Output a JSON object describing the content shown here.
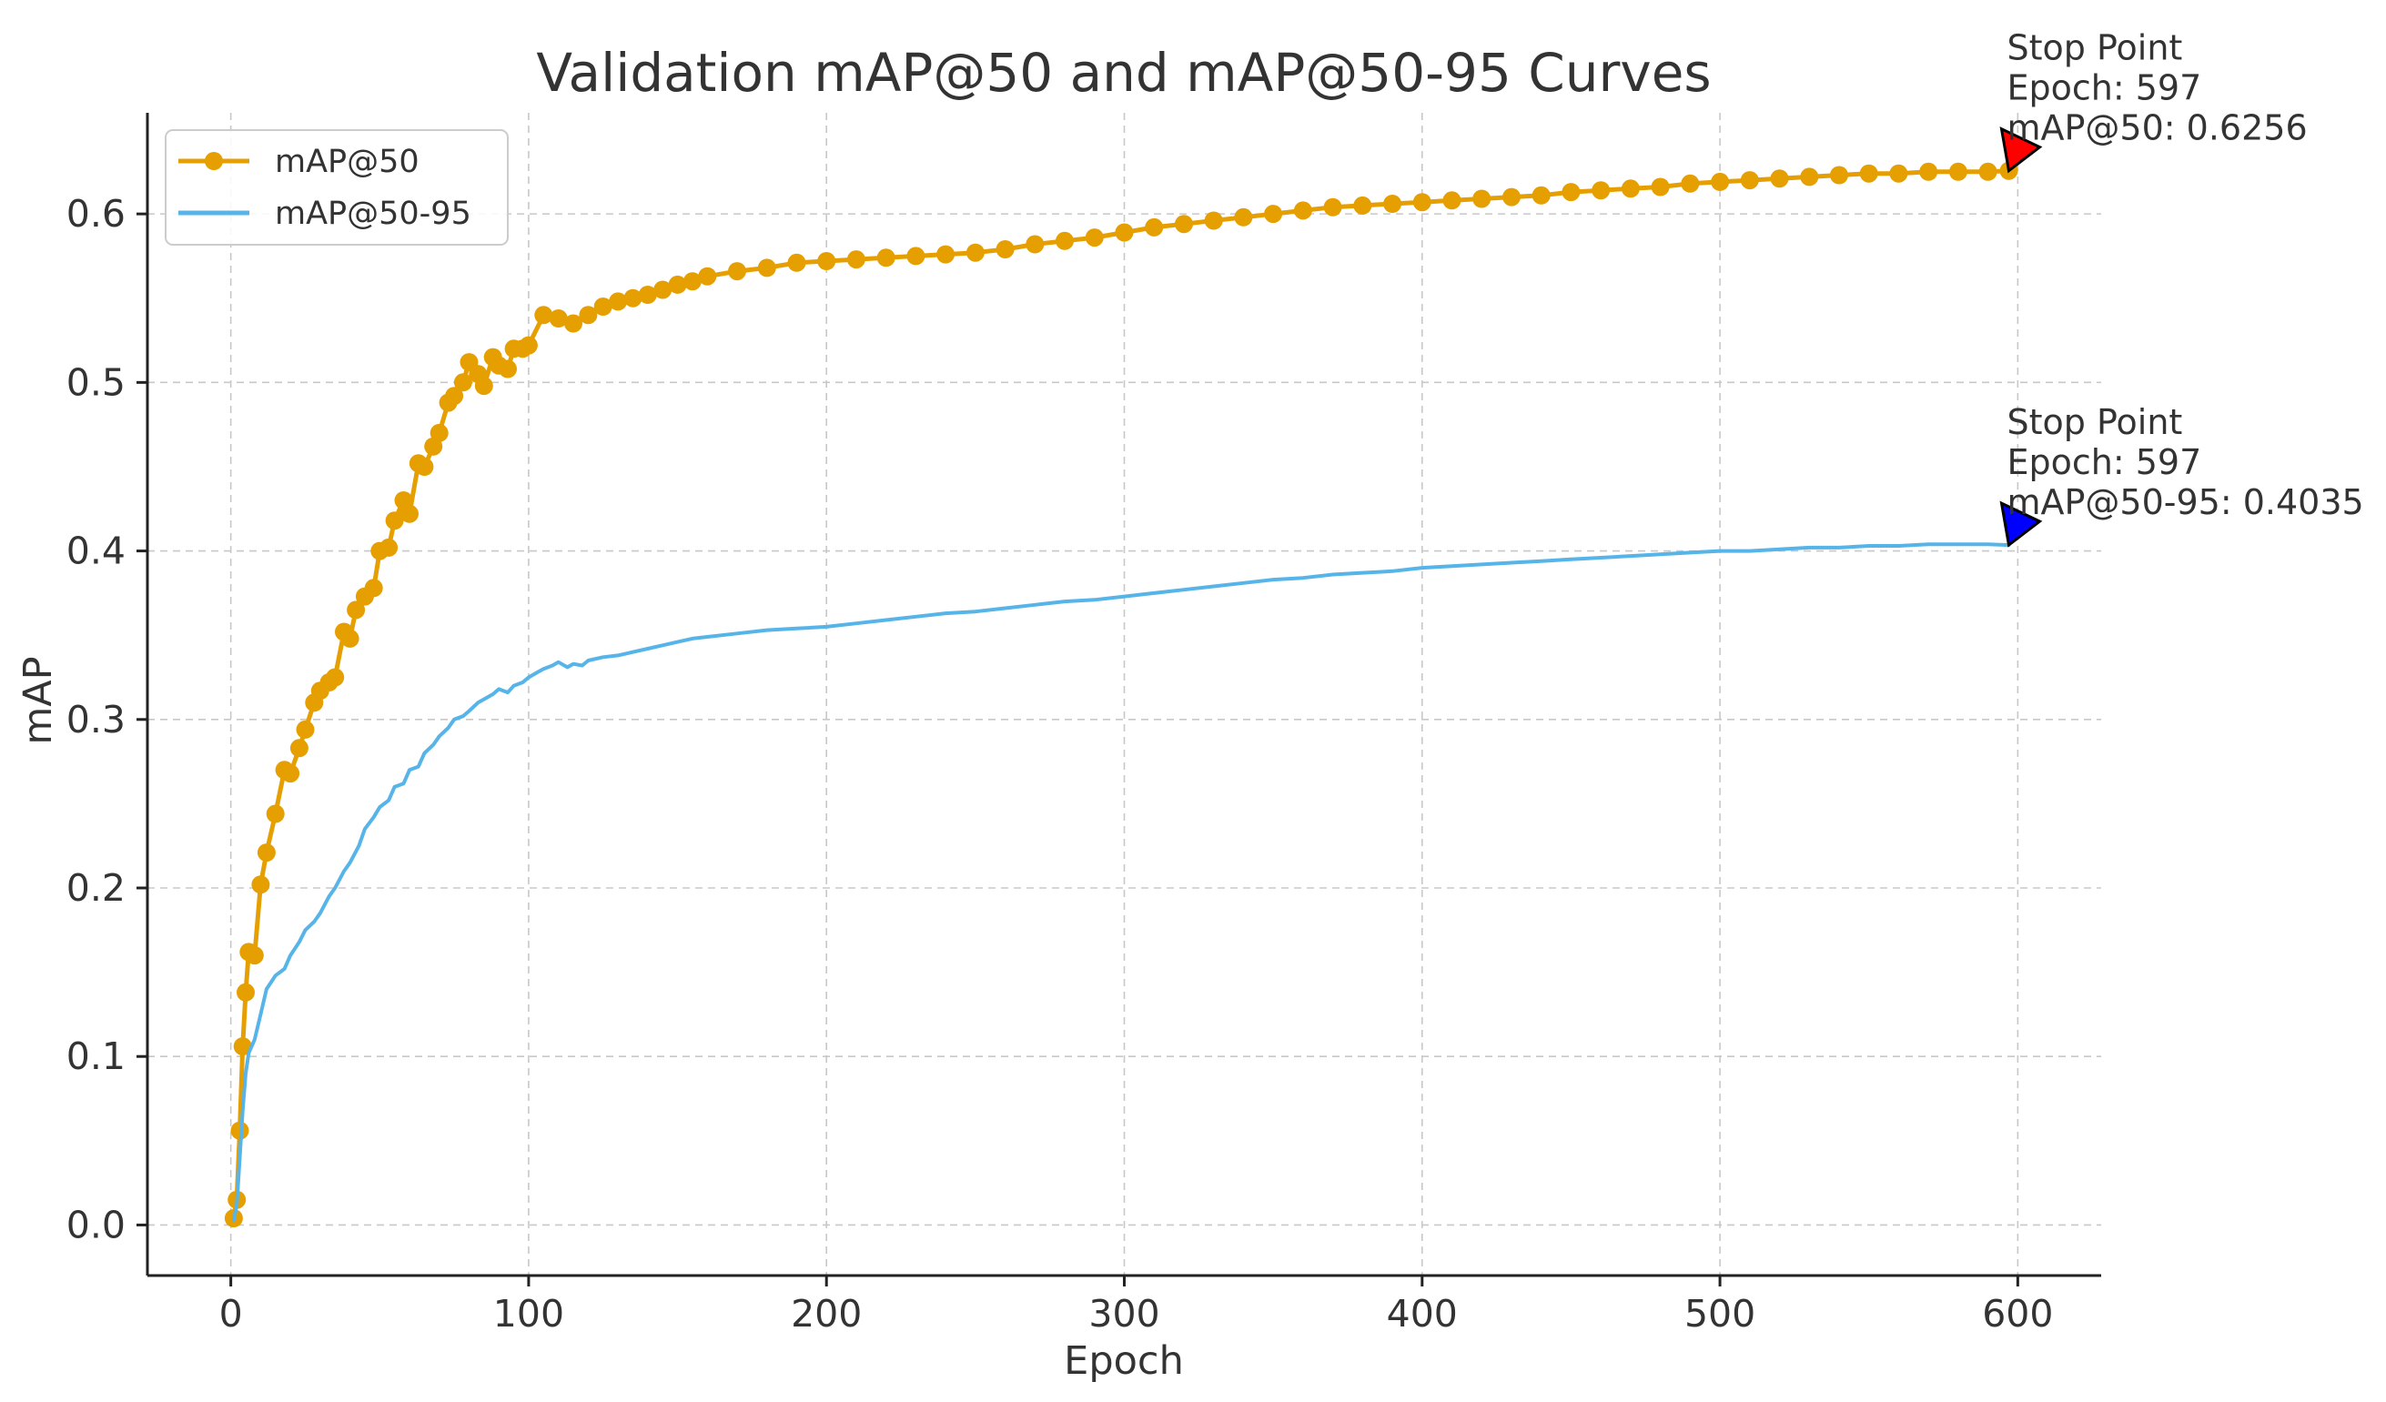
{
  "chart_data": {
    "type": "line",
    "title": "Validation mAP@50 and mAP@50-95 Curves",
    "xlabel": "Epoch",
    "ylabel": "mAP",
    "xlim": [
      -28,
      628
    ],
    "ylim": [
      -0.03,
      0.66
    ],
    "xticks": [
      0,
      100,
      200,
      300,
      400,
      500,
      600
    ],
    "xtick_labels": [
      "0",
      "100",
      "200",
      "300",
      "400",
      "500",
      "600"
    ],
    "yticks": [
      0.0,
      0.1,
      0.2,
      0.3,
      0.4,
      0.5,
      0.6
    ],
    "ytick_labels": [
      "0.0",
      "0.1",
      "0.2",
      "0.3",
      "0.4",
      "0.5",
      "0.6"
    ],
    "grid": true,
    "legend_position": "top-left",
    "series": [
      {
        "name": "mAP@50",
        "color": "#E69F00",
        "marker": "circle",
        "x": [
          1,
          2,
          3,
          4,
          5,
          6,
          8,
          10,
          12,
          15,
          18,
          20,
          23,
          25,
          28,
          30,
          33,
          35,
          38,
          40,
          42,
          45,
          48,
          50,
          53,
          55,
          58,
          60,
          63,
          65,
          68,
          70,
          73,
          75,
          78,
          80,
          83,
          85,
          88,
          90,
          93,
          95,
          98,
          100,
          105,
          110,
          115,
          120,
          125,
          130,
          135,
          140,
          145,
          150,
          155,
          160,
          170,
          180,
          190,
          200,
          210,
          220,
          230,
          240,
          250,
          260,
          270,
          280,
          290,
          300,
          310,
          320,
          330,
          340,
          350,
          360,
          370,
          380,
          390,
          400,
          410,
          420,
          430,
          440,
          450,
          460,
          470,
          480,
          490,
          500,
          510,
          520,
          530,
          540,
          550,
          560,
          570,
          580,
          590,
          597
        ],
        "values": [
          0.004,
          0.015,
          0.056,
          0.106,
          0.138,
          0.162,
          0.16,
          0.202,
          0.221,
          0.244,
          0.27,
          0.268,
          0.283,
          0.294,
          0.31,
          0.317,
          0.322,
          0.325,
          0.352,
          0.348,
          0.365,
          0.373,
          0.378,
          0.4,
          0.402,
          0.418,
          0.43,
          0.422,
          0.452,
          0.45,
          0.462,
          0.47,
          0.488,
          0.492,
          0.5,
          0.512,
          0.505,
          0.498,
          0.515,
          0.51,
          0.508,
          0.52,
          0.52,
          0.522,
          0.54,
          0.538,
          0.535,
          0.54,
          0.545,
          0.548,
          0.55,
          0.552,
          0.555,
          0.558,
          0.56,
          0.563,
          0.566,
          0.568,
          0.571,
          0.572,
          0.573,
          0.574,
          0.575,
          0.576,
          0.577,
          0.579,
          0.582,
          0.584,
          0.586,
          0.589,
          0.592,
          0.594,
          0.596,
          0.598,
          0.6,
          0.602,
          0.604,
          0.605,
          0.606,
          0.607,
          0.608,
          0.609,
          0.61,
          0.611,
          0.613,
          0.614,
          0.615,
          0.616,
          0.618,
          0.619,
          0.62,
          0.621,
          0.622,
          0.623,
          0.624,
          0.624,
          0.625,
          0.625,
          0.625,
          0.6256
        ]
      },
      {
        "name": "mAP@50-95",
        "color": "#56B4E9",
        "marker": "none",
        "x": [
          1,
          2,
          3,
          4,
          5,
          6,
          8,
          10,
          12,
          15,
          18,
          20,
          23,
          25,
          28,
          30,
          33,
          35,
          38,
          40,
          43,
          45,
          48,
          50,
          53,
          55,
          58,
          60,
          63,
          65,
          68,
          70,
          73,
          75,
          78,
          80,
          83,
          85,
          88,
          90,
          93,
          95,
          98,
          100,
          103,
          105,
          108,
          110,
          113,
          115,
          118,
          120,
          125,
          130,
          135,
          140,
          145,
          150,
          155,
          160,
          170,
          180,
          190,
          200,
          210,
          220,
          230,
          240,
          250,
          260,
          270,
          280,
          290,
          300,
          310,
          320,
          330,
          340,
          350,
          360,
          370,
          380,
          390,
          400,
          410,
          420,
          430,
          440,
          450,
          460,
          470,
          480,
          490,
          500,
          510,
          520,
          530,
          540,
          550,
          560,
          570,
          580,
          590,
          597
        ],
        "values": [
          0.003,
          0.012,
          0.04,
          0.068,
          0.09,
          0.102,
          0.11,
          0.125,
          0.14,
          0.148,
          0.152,
          0.16,
          0.168,
          0.175,
          0.18,
          0.185,
          0.195,
          0.2,
          0.21,
          0.215,
          0.225,
          0.235,
          0.242,
          0.248,
          0.252,
          0.26,
          0.262,
          0.27,
          0.272,
          0.28,
          0.285,
          0.29,
          0.295,
          0.3,
          0.302,
          0.305,
          0.31,
          0.312,
          0.315,
          0.318,
          0.316,
          0.32,
          0.322,
          0.325,
          0.328,
          0.33,
          0.332,
          0.334,
          0.331,
          0.333,
          0.332,
          0.335,
          0.337,
          0.338,
          0.34,
          0.342,
          0.344,
          0.346,
          0.348,
          0.349,
          0.351,
          0.353,
          0.354,
          0.355,
          0.357,
          0.359,
          0.361,
          0.363,
          0.364,
          0.366,
          0.368,
          0.37,
          0.371,
          0.373,
          0.375,
          0.377,
          0.379,
          0.381,
          0.383,
          0.384,
          0.386,
          0.387,
          0.388,
          0.39,
          0.391,
          0.392,
          0.393,
          0.394,
          0.395,
          0.396,
          0.397,
          0.398,
          0.399,
          0.4,
          0.4,
          0.401,
          0.402,
          0.402,
          0.403,
          0.403,
          0.404,
          0.404,
          0.404,
          0.4035
        ]
      }
    ],
    "annotations": [
      {
        "series": "mAP@50",
        "x": 597,
        "y": 0.6256,
        "marker_color": "#FF0000",
        "lines": [
          "Stop Point",
          "Epoch: 597",
          "mAP@50: 0.6256"
        ]
      },
      {
        "series": "mAP@50-95",
        "x": 597,
        "y": 0.4035,
        "marker_color": "#0000FF",
        "lines": [
          "Stop Point",
          "Epoch: 597",
          "mAP@50-95: 0.4035"
        ]
      }
    ]
  }
}
